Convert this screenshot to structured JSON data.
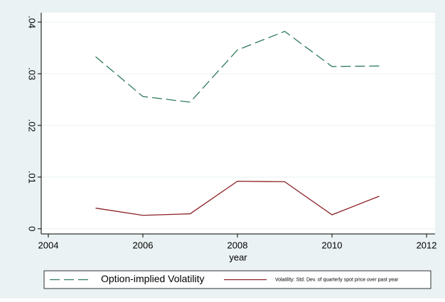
{
  "chart_data": {
    "type": "line",
    "x_label": "year",
    "x": [
      2005,
      2006,
      2007,
      2008,
      2009,
      2010,
      2011
    ],
    "series": [
      {
        "name": "Option-implied Volatility",
        "color": "#2e7a58",
        "dash": true,
        "values": [
          0.0333,
          0.0256,
          0.0245,
          0.0346,
          0.0382,
          0.0314,
          0.0315
        ]
      },
      {
        "name": "Volatility: Std. Dev. of quarterly spot price over past year",
        "color": "#8b1f24",
        "dash": false,
        "values": [
          0.004,
          0.0026,
          0.0029,
          0.0092,
          0.0091,
          0.0027,
          0.0063
        ]
      }
    ],
    "xlim": [
      2003.85,
      2012.18
    ],
    "xticks": [
      2004,
      2006,
      2008,
      2010,
      2012
    ],
    "ylim": [
      -0.001,
      0.0418
    ],
    "yticks": [
      0,
      {
        "value": 0.01,
        "label": ".01"
      },
      {
        "value": 0.02,
        "label": ".02"
      },
      {
        "value": 0.03,
        "label": ".03"
      },
      {
        "value": 0.04,
        "label": ".04"
      }
    ],
    "grid": true,
    "legend": "bottom"
  }
}
